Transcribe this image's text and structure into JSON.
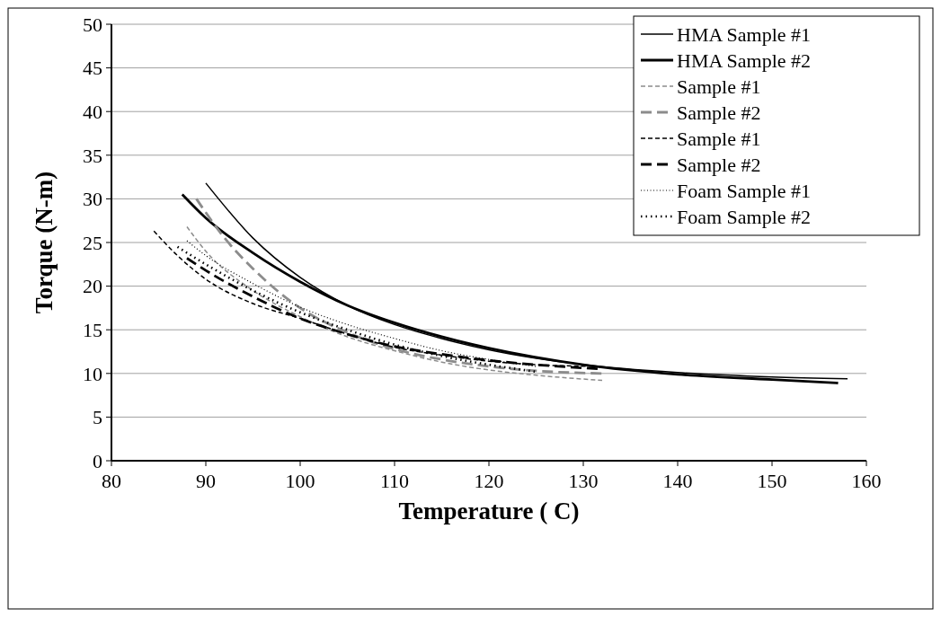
{
  "chart_data": {
    "type": "line",
    "xlabel": "Temperature ( C)",
    "ylabel": "Torque (N-m)",
    "xlim": [
      80,
      160
    ],
    "xticks": [
      80,
      90,
      100,
      110,
      120,
      130,
      140,
      150,
      160
    ],
    "ylim": [
      0,
      50
    ],
    "yticks": [
      0,
      5,
      10,
      15,
      20,
      25,
      30,
      35,
      40,
      45,
      50
    ],
    "grid": "y",
    "legend": "top right",
    "series": [
      {
        "name": "HMA Sample #1",
        "color": "#000000",
        "line_style": "solid",
        "x": [
          90,
          95,
          100,
          105,
          110,
          115,
          120,
          130,
          140,
          150,
          158
        ],
        "values": [
          31.8,
          25.5,
          21,
          17.8,
          15.6,
          14,
          12.7,
          11,
          10.1,
          9.6,
          9.4
        ]
      },
      {
        "name": "HMA Sample #2",
        "color": "#000000",
        "line_style": "solid",
        "x": [
          87.5,
          90,
          95,
          100,
          105,
          110,
          115,
          120,
          130,
          140,
          150,
          157
        ],
        "values": [
          30.5,
          27.8,
          23.8,
          20.5,
          17.8,
          15.8,
          14.2,
          12.9,
          11,
          9.9,
          9.3,
          8.9
        ]
      },
      {
        "name": "Sample #1",
        "color": "#8c8c8c",
        "line_style": "dashed",
        "x": [
          88,
          90,
          95,
          100,
          105,
          110,
          115,
          120,
          125,
          132
        ],
        "values": [
          26.8,
          24,
          19.5,
          16.5,
          14.2,
          12.6,
          11.3,
          10.4,
          9.8,
          9.2
        ]
      },
      {
        "name": "Sample #2",
        "color": "#8c8c8c",
        "line_style": "dashed",
        "x": [
          89,
          92,
          95,
          100,
          105,
          110,
          115,
          120,
          125,
          132
        ],
        "values": [
          30,
          25.5,
          22,
          17.5,
          14.7,
          12.8,
          11.6,
          10.8,
          10.3,
          10
        ]
      },
      {
        "name": "Sample #1",
        "color": "#000000",
        "line_style": "dashed",
        "x": [
          84.5,
          87,
          90,
          95,
          100,
          105,
          110,
          115,
          120,
          125,
          132
        ],
        "values": [
          26.3,
          23.5,
          20.8,
          18,
          16.3,
          14.5,
          13,
          12.1,
          11.4,
          11,
          10.8
        ]
      },
      {
        "name": "Sample #2",
        "color": "#000000",
        "line_style": "dashed",
        "x": [
          88,
          90,
          95,
          100,
          105,
          110,
          115,
          120,
          125,
          132
        ],
        "values": [
          23.2,
          21.8,
          18.8,
          16.3,
          14.5,
          13.1,
          12.2,
          11.5,
          11,
          10.5
        ]
      },
      {
        "name": "Foam Sample #1",
        "color": "#000000",
        "line_style": "dotted",
        "x": [
          88,
          90,
          95,
          100,
          105,
          110,
          115,
          120,
          125
        ],
        "values": [
          25.2,
          23.5,
          20.3,
          17.6,
          15.6,
          14,
          12.6,
          11.6,
          10.8
        ]
      },
      {
        "name": "Foam Sample #2",
        "color": "#000000",
        "line_style": "dotted",
        "x": [
          87,
          90,
          95,
          100,
          105,
          110,
          115,
          120,
          125
        ],
        "values": [
          24.5,
          22.5,
          19.5,
          17,
          15,
          13.3,
          12,
          11,
          10.2
        ]
      }
    ]
  }
}
